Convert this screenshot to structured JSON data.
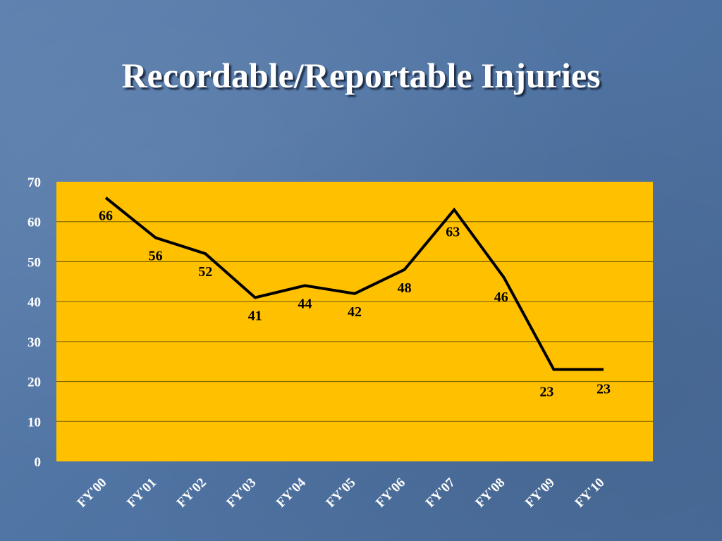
{
  "slide": {
    "title": "Recordable/Reportable Injuries"
  },
  "colors": {
    "plot_background": "#ffc000",
    "line": "#000000",
    "gridline": "#6b5a00",
    "tick_text": "#ffffff",
    "data_label_text": "#000000"
  },
  "chart_data": {
    "type": "line",
    "title": "",
    "xlabel": "",
    "ylabel": "",
    "categories": [
      "FY'00",
      "FY'01",
      "FY'02",
      "FY'03",
      "FY'04",
      "FY'05",
      "FY'06",
      "FY'07",
      "FY'08",
      "FY'09",
      "FY'10"
    ],
    "series": [
      {
        "values": [
          66,
          56,
          52,
          41,
          44,
          42,
          48,
          63,
          46,
          23,
          23
        ]
      }
    ],
    "ylim": [
      0,
      70
    ],
    "yticks": [
      0,
      10,
      20,
      30,
      40,
      50,
      60,
      70
    ],
    "grid": true,
    "legend": "none"
  }
}
